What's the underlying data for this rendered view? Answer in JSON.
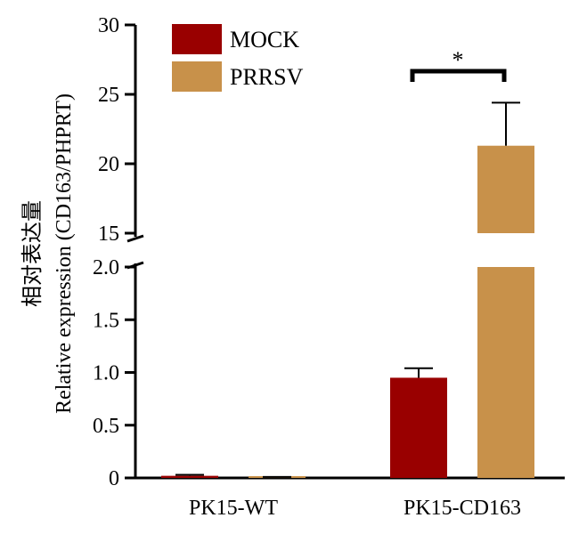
{
  "chart_data": {
    "type": "bar",
    "ylabel_cn": "相对表达量",
    "ylabel_en": "Relative expression (CD163/PHPRT)",
    "categories": [
      "PK15-WT",
      "PK15-CD163"
    ],
    "series": [
      {
        "name": "MOCK",
        "color": "#990000",
        "values": [
          0.02,
          0.95
        ],
        "errors": [
          0.01,
          0.09
        ]
      },
      {
        "name": "PRRSV",
        "color": "#C8914A",
        "values": [
          0.01,
          21.3
        ],
        "errors": [
          0.0,
          3.1
        ]
      }
    ],
    "axis_break": [
      2.0,
      15
    ],
    "lower_ticks": [
      "0",
      "0.5",
      "1.0",
      "1.5",
      "2.0"
    ],
    "upper_ticks": [
      "15",
      "20",
      "25",
      "30"
    ],
    "significance": "*",
    "legend_position": "top-left"
  }
}
